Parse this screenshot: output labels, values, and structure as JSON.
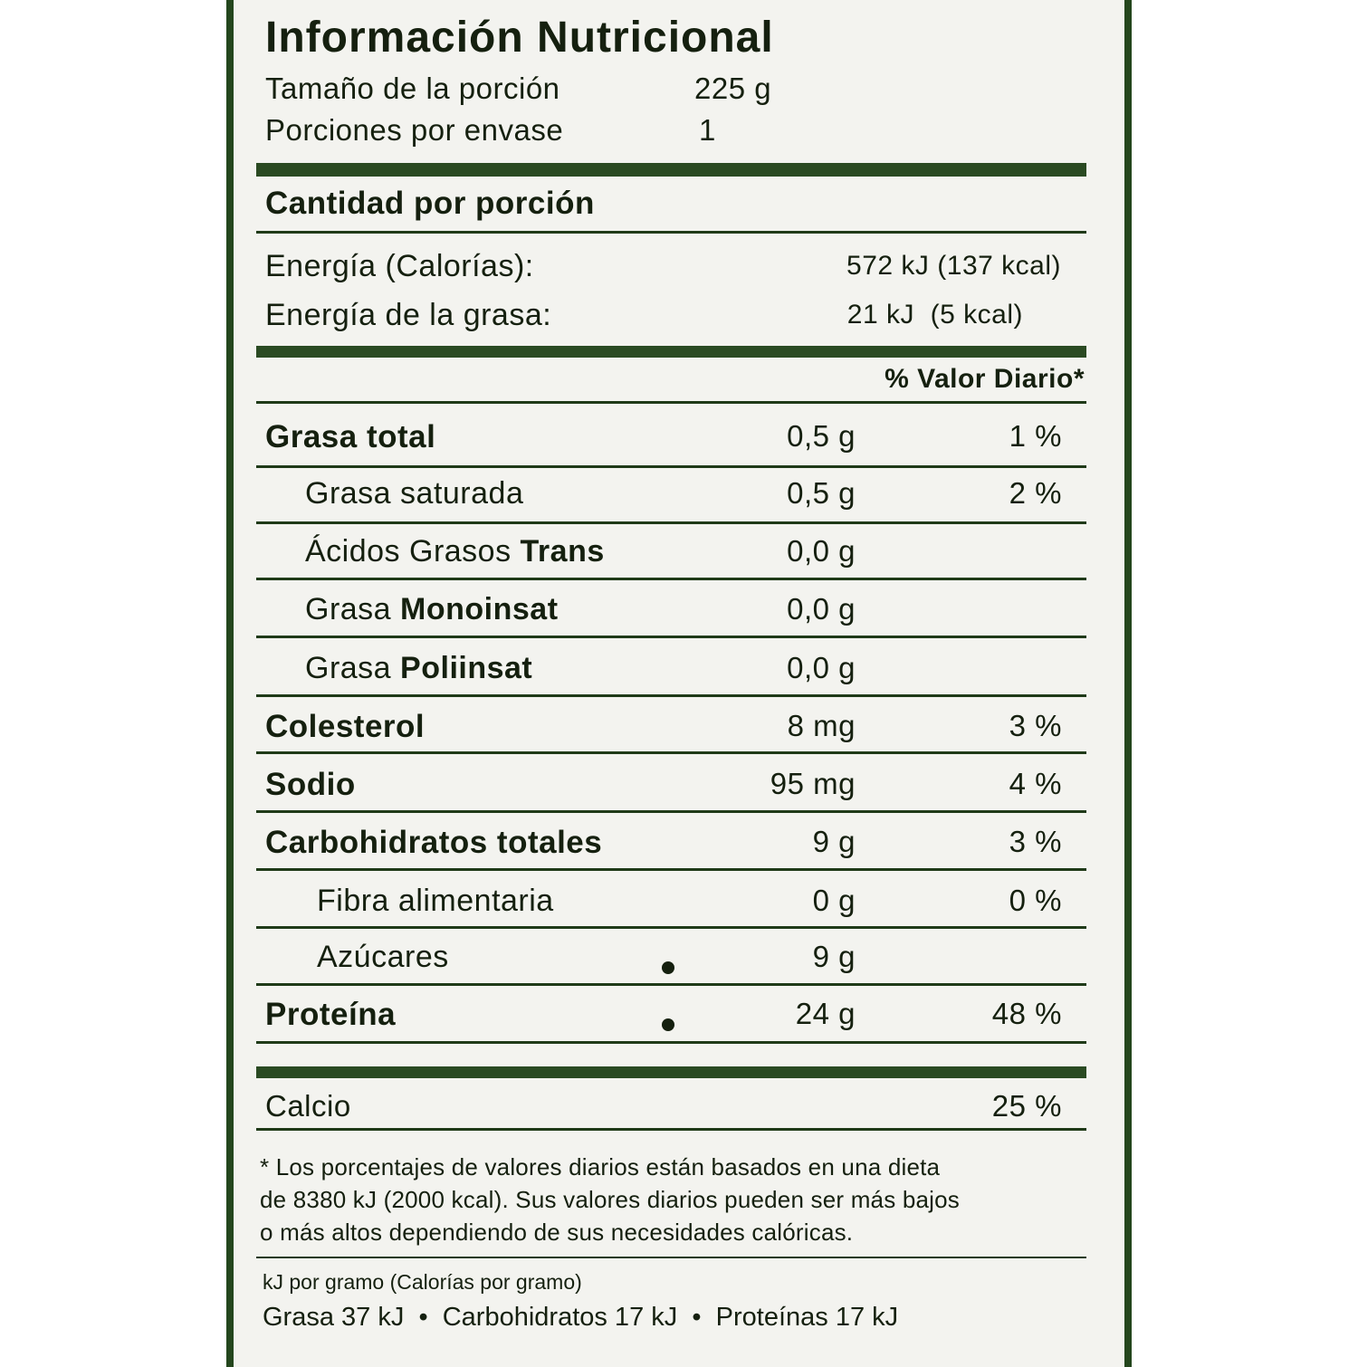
{
  "title": "Información Nutricional",
  "serving_size_label": "Tamaño de la porción",
  "serving_size_value": "225 g",
  "servings_label": "Porciones por envase",
  "servings_value": "1",
  "amount_header": "Cantidad por porción",
  "energy_label": "Energía (Calorías):",
  "energy_value": "572 kJ (137 kcal)",
  "fat_energy_label": "Energía de la grasa:",
  "fat_energy_value": "21 kJ  (5 kcal)",
  "dv_header": "% Valor Diario*",
  "rows": [
    {
      "label": "Grasa total",
      "label_bold": "",
      "amount": "0,5 g",
      "percent": "1 %",
      "bold": true,
      "indent": 0
    },
    {
      "label": "Grasa saturada",
      "label_bold": "",
      "amount": "0,5 g",
      "percent": "2 %",
      "bold": false,
      "indent": 1
    },
    {
      "label": "Ácidos Grasos ",
      "label_bold": "Trans",
      "amount": "0,0 g",
      "percent": "",
      "bold": false,
      "indent": 1
    },
    {
      "label": "Grasa ",
      "label_bold": "Monoinsat",
      "amount": "0,0 g",
      "percent": "",
      "bold": false,
      "indent": 1
    },
    {
      "label": "Grasa ",
      "label_bold": "Poliinsat",
      "amount": "0,0 g",
      "percent": "",
      "bold": false,
      "indent": 1
    },
    {
      "label": "Colesterol",
      "label_bold": "",
      "amount": "8 mg",
      "percent": "3 %",
      "bold": true,
      "indent": 0
    },
    {
      "label": "Sodio",
      "label_bold": "",
      "amount": "95 mg",
      "percent": "4 %",
      "bold": true,
      "indent": 0
    },
    {
      "label": "Carbohidratos totales",
      "label_bold": "",
      "amount": "9 g",
      "percent": "3 %",
      "bold": true,
      "indent": 0
    },
    {
      "label": "Fibra alimentaria",
      "label_bold": "",
      "amount": "0 g",
      "percent": "0 %",
      "bold": false,
      "indent": 2
    },
    {
      "label": "Azúcares",
      "label_bold": "",
      "amount": "9 g",
      "percent": "",
      "bold": false,
      "indent": 2,
      "dot": true
    },
    {
      "label": "Proteína",
      "label_bold": "",
      "amount": "24 g",
      "percent": "48 %",
      "bold": true,
      "indent": 0,
      "dot": true
    }
  ],
  "calcium_label": "Calcio",
  "calcium_percent": "25 %",
  "footnote": [
    "* Los porcentajes de valores diarios están basados en una dieta",
    "de 8380 kJ (2000 kcal). Sus valores diarios pueden ser más bajos",
    "o más altos dependiendo de sus necesidades calóricas."
  ],
  "per_gram_header": "kJ por gramo (Calorías por gramo)",
  "per_gram_line": "Grasa 37 kJ  •  Carbohidratos 17 kJ  •  Proteínas 17 kJ",
  "colors": {
    "border": "#24461d",
    "background": "#f3f3ef",
    "text": "#15200f"
  }
}
